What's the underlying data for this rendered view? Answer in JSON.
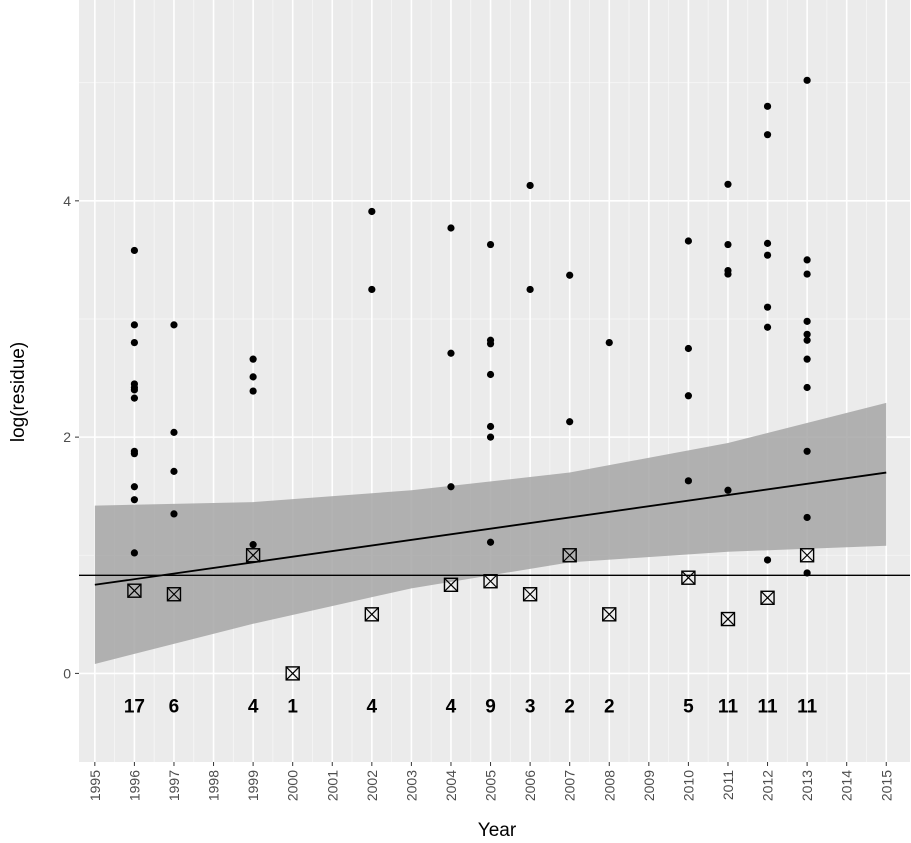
{
  "chart_data": {
    "type": "scatter",
    "xlabel": "Year",
    "ylabel": "log(residue)",
    "xlim": [
      1994.6,
      2015.6
    ],
    "ylim": [
      -0.75,
      5.7
    ],
    "x_ticks": [
      "1995",
      "1996",
      "1997",
      "1998",
      "1999",
      "2000",
      "2001",
      "2002",
      "2003",
      "2004",
      "2005",
      "2006",
      "2007",
      "2008",
      "2009",
      "2010",
      "2011",
      "2012",
      "2013",
      "2014",
      "2015"
    ],
    "y_ticks": [
      "0",
      "2",
      "4"
    ],
    "y_tick_values": [
      0,
      2,
      4
    ],
    "grid": true,
    "panel_background": "#ebebeb",
    "grid_color": "#ffffff",
    "point_color": "#000000",
    "ribbon_color": "#a6a6a6",
    "points": [
      {
        "x": 1996,
        "y": 3.58
      },
      {
        "x": 1996,
        "y": 2.95
      },
      {
        "x": 1996,
        "y": 2.8
      },
      {
        "x": 1996,
        "y": 2.45
      },
      {
        "x": 1996,
        "y": 2.42
      },
      {
        "x": 1996,
        "y": 2.4
      },
      {
        "x": 1996,
        "y": 2.33
      },
      {
        "x": 1996,
        "y": 1.88
      },
      {
        "x": 1996,
        "y": 1.86
      },
      {
        "x": 1996,
        "y": 1.58
      },
      {
        "x": 1996,
        "y": 1.47
      },
      {
        "x": 1996,
        "y": 1.02
      },
      {
        "x": 1997,
        "y": 2.95
      },
      {
        "x": 1997,
        "y": 2.04
      },
      {
        "x": 1997,
        "y": 1.71
      },
      {
        "x": 1997,
        "y": 1.35
      },
      {
        "x": 1999,
        "y": 2.66
      },
      {
        "x": 1999,
        "y": 2.51
      },
      {
        "x": 1999,
        "y": 2.39
      },
      {
        "x": 1999,
        "y": 1.09
      },
      {
        "x": 2002,
        "y": 3.91
      },
      {
        "x": 2002,
        "y": 3.25
      },
      {
        "x": 2004,
        "y": 3.77
      },
      {
        "x": 2004,
        "y": 2.71
      },
      {
        "x": 2004,
        "y": 1.58
      },
      {
        "x": 2005,
        "y": 3.63
      },
      {
        "x": 2005,
        "y": 2.82
      },
      {
        "x": 2005,
        "y": 2.79
      },
      {
        "x": 2005,
        "y": 2.53
      },
      {
        "x": 2005,
        "y": 2.09
      },
      {
        "x": 2005,
        "y": 2.0
      },
      {
        "x": 2005,
        "y": 1.11
      },
      {
        "x": 2006,
        "y": 4.13
      },
      {
        "x": 2006,
        "y": 3.25
      },
      {
        "x": 2007,
        "y": 3.37
      },
      {
        "x": 2007,
        "y": 2.13
      },
      {
        "x": 2008,
        "y": 2.8
      },
      {
        "x": 2010,
        "y": 3.66
      },
      {
        "x": 2010,
        "y": 2.75
      },
      {
        "x": 2010,
        "y": 2.35
      },
      {
        "x": 2010,
        "y": 1.63
      },
      {
        "x": 2011,
        "y": 4.14
      },
      {
        "x": 2011,
        "y": 3.63
      },
      {
        "x": 2011,
        "y": 3.41
      },
      {
        "x": 2011,
        "y": 3.38
      },
      {
        "x": 2011,
        "y": 1.55
      },
      {
        "x": 2012,
        "y": 4.8
      },
      {
        "x": 2012,
        "y": 4.56
      },
      {
        "x": 2012,
        "y": 3.64
      },
      {
        "x": 2012,
        "y": 3.54
      },
      {
        "x": 2012,
        "y": 3.1
      },
      {
        "x": 2012,
        "y": 2.93
      },
      {
        "x": 2012,
        "y": 0.96
      },
      {
        "x": 2013,
        "y": 5.02
      },
      {
        "x": 2013,
        "y": 3.5
      },
      {
        "x": 2013,
        "y": 3.38
      },
      {
        "x": 2013,
        "y": 2.98
      },
      {
        "x": 2013,
        "y": 2.87
      },
      {
        "x": 2013,
        "y": 2.82
      },
      {
        "x": 2013,
        "y": 2.66
      },
      {
        "x": 2013,
        "y": 2.42
      },
      {
        "x": 2013,
        "y": 1.88
      },
      {
        "x": 2013,
        "y": 1.32
      },
      {
        "x": 2013,
        "y": 0.85
      }
    ],
    "box_markers": [
      {
        "x": 1996,
        "y": 0.7
      },
      {
        "x": 1997,
        "y": 0.67
      },
      {
        "x": 1999,
        "y": 1.0
      },
      {
        "x": 2000,
        "y": 0.0
      },
      {
        "x": 2002,
        "y": 0.5
      },
      {
        "x": 2004,
        "y": 0.75
      },
      {
        "x": 2005,
        "y": 0.78
      },
      {
        "x": 2006,
        "y": 0.67
      },
      {
        "x": 2007,
        "y": 1.0
      },
      {
        "x": 2008,
        "y": 0.5
      },
      {
        "x": 2010,
        "y": 0.81
      },
      {
        "x": 2011,
        "y": 0.46
      },
      {
        "x": 2012,
        "y": 0.64
      },
      {
        "x": 2013,
        "y": 1.0
      }
    ],
    "counts": [
      {
        "x": 1996,
        "label": "17"
      },
      {
        "x": 1997,
        "label": "6"
      },
      {
        "x": 1999,
        "label": "4"
      },
      {
        "x": 2000,
        "label": "1"
      },
      {
        "x": 2002,
        "label": "4"
      },
      {
        "x": 2004,
        "label": "4"
      },
      {
        "x": 2005,
        "label": "9"
      },
      {
        "x": 2006,
        "label": "3"
      },
      {
        "x": 2007,
        "label": "2"
      },
      {
        "x": 2008,
        "label": "2"
      },
      {
        "x": 2010,
        "label": "5"
      },
      {
        "x": 2011,
        "label": "11"
      },
      {
        "x": 2012,
        "label": "11"
      },
      {
        "x": 2013,
        "label": "11"
      }
    ],
    "count_label_y": -0.27,
    "trend_line": {
      "x": [
        1995,
        2015
      ],
      "y": [
        0.75,
        1.7
      ]
    },
    "confidence_band": {
      "x": [
        1995,
        1999,
        2003,
        2007,
        2011,
        2015
      ],
      "lower": [
        0.08,
        0.42,
        0.72,
        0.94,
        1.03,
        1.08
      ],
      "upper": [
        1.42,
        1.45,
        1.55,
        1.7,
        1.95,
        2.29
      ]
    },
    "reference_line_y": 0.83
  }
}
